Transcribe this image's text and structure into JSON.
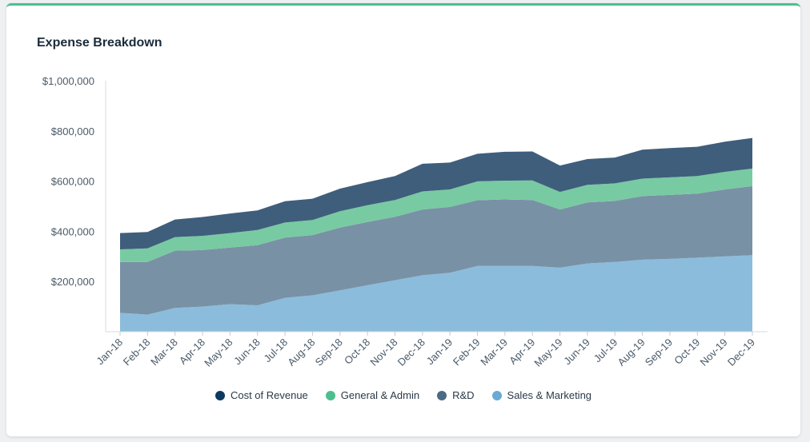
{
  "card": {
    "title": "Expense Breakdown"
  },
  "colors": {
    "accent_border": "#4cbf8f",
    "cost_of_revenue": "#3f5e7c",
    "general_admin": "#78caa2",
    "rnd": "#7891a5",
    "sales_marketing": "#8cbcdc"
  },
  "legend": [
    {
      "label": "Cost of Revenue",
      "color": "#0e3a60"
    },
    {
      "label": "General & Admin",
      "color": "#4cbf8f"
    },
    {
      "label": "R&D",
      "color": "#4a6a86"
    },
    {
      "label": "Sales & Marketing",
      "color": "#6aaad4"
    }
  ],
  "chart_data": {
    "type": "area",
    "stacked": true,
    "title": "Expense Breakdown",
    "xlabel": "",
    "ylabel": "",
    "ylim": [
      0,
      1000000
    ],
    "yticks": [
      "$200,000",
      "$400,000",
      "$600,000",
      "$800,000",
      "$1,000,000"
    ],
    "ytick_values": [
      200000,
      400000,
      600000,
      800000,
      1000000
    ],
    "categories": [
      "Jan-18",
      "Feb-18",
      "Mar-18",
      "Apr-18",
      "May-18",
      "Jun-18",
      "Jul-18",
      "Aug-18",
      "Sep-18",
      "Oct-18",
      "Nov-18",
      "Dec-18",
      "Jan-19",
      "Feb-19",
      "Mar-19",
      "Apr-19",
      "May-19",
      "Jun-19",
      "Jul-19",
      "Aug-19",
      "Sep-19",
      "Oct-19",
      "Nov-19",
      "Dec-19"
    ],
    "series": [
      {
        "name": "Sales & Marketing",
        "values": [
          75000,
          68000,
          95000,
          100000,
          110000,
          105000,
          135000,
          145000,
          165000,
          185000,
          205000,
          225000,
          235000,
          262000,
          262000,
          262000,
          255000,
          272000,
          278000,
          287000,
          290000,
          295000,
          300000,
          305000
        ]
      },
      {
        "name": "R&D",
        "values": [
          203000,
          210000,
          228000,
          225000,
          225000,
          240000,
          240000,
          240000,
          250000,
          252000,
          253000,
          262000,
          262000,
          262000,
          265000,
          263000,
          232000,
          243000,
          243000,
          253000,
          255000,
          255000,
          267000,
          275000
        ]
      },
      {
        "name": "General & Admin",
        "values": [
          50000,
          54000,
          54000,
          57000,
          58000,
          60000,
          60000,
          60000,
          65000,
          67000,
          67000,
          72000,
          70000,
          75000,
          75000,
          78000,
          70000,
          70000,
          70000,
          70000,
          70000,
          70000,
          70000,
          70000
        ]
      },
      {
        "name": "Cost of Revenue",
        "values": [
          65000,
          65000,
          70000,
          75000,
          78000,
          78000,
          85000,
          85000,
          90000,
          92000,
          95000,
          110000,
          107000,
          110000,
          115000,
          115000,
          105000,
          103000,
          103000,
          115000,
          117000,
          117000,
          120000,
          122000
        ]
      }
    ],
    "grid": false,
    "legend_position": "bottom-center"
  }
}
